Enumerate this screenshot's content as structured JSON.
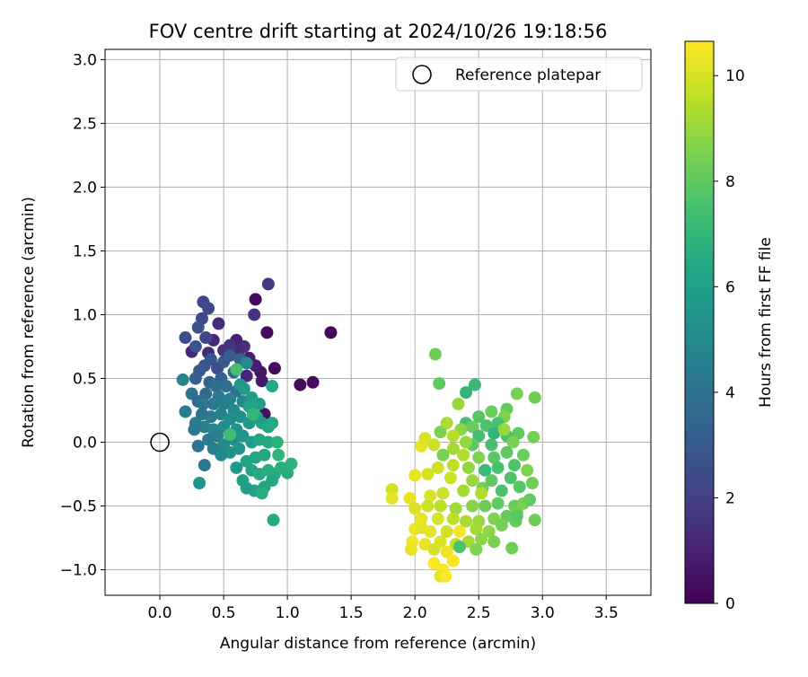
{
  "chart_data": {
    "type": "scatter",
    "title": "FOV centre drift starting at 2024/10/26 19:18:56",
    "xlabel": "Angular distance from reference (arcmin)",
    "ylabel": "Rotation from reference (arcmin)",
    "xlim": [
      -0.43,
      3.85
    ],
    "ylim": [
      -1.2,
      3.08
    ],
    "x_ticks": [
      0.0,
      0.5,
      1.0,
      1.5,
      2.0,
      2.5,
      3.0,
      3.5
    ],
    "x_tick_labels": [
      "0.0",
      "0.5",
      "1.0",
      "1.5",
      "2.0",
      "2.5",
      "3.0",
      "3.5"
    ],
    "y_ticks": [
      -1.0,
      -0.5,
      0.0,
      0.5,
      1.0,
      1.5,
      2.0,
      2.5,
      3.0
    ],
    "y_tick_labels": [
      "−1.0",
      "−0.5",
      "0.0",
      "0.5",
      "1.0",
      "1.5",
      "2.0",
      "2.5",
      "3.0"
    ],
    "grid": true,
    "legend": {
      "placement": "top-right",
      "entries": [
        {
          "label": "Reference platepar",
          "marker": "open-circle",
          "x": 0.0,
          "y": 0.0
        }
      ]
    },
    "colorbar": {
      "label": "Hours from first FF file",
      "colormap": "viridis",
      "range": [
        0,
        10.65
      ],
      "ticks": [
        0,
        2,
        4,
        6,
        8,
        10
      ],
      "tick_labels": [
        "0",
        "2",
        "4",
        "6",
        "8",
        "10"
      ]
    },
    "series": [
      {
        "color_by": "hours",
        "points": [
          [
            0.75,
            1.12,
            0.2
          ],
          [
            0.85,
            1.24,
            1.8
          ],
          [
            0.74,
            1.0,
            1.5
          ],
          [
            0.84,
            0.86,
            0.3
          ],
          [
            1.34,
            0.86,
            0.2
          ],
          [
            0.9,
            0.58,
            0.3
          ],
          [
            0.79,
            0.55,
            0.6
          ],
          [
            1.1,
            0.45,
            0.3
          ],
          [
            1.2,
            0.47,
            0.3
          ],
          [
            0.82,
            0.22,
            0.5
          ],
          [
            0.6,
            0.8,
            1.0
          ],
          [
            0.62,
            0.72,
            1.2
          ],
          [
            0.7,
            0.66,
            0.9
          ],
          [
            0.75,
            0.6,
            0.8
          ],
          [
            0.68,
            0.52,
            1.1
          ],
          [
            0.8,
            0.48,
            0.7
          ],
          [
            0.66,
            0.75,
            1.4
          ],
          [
            0.55,
            0.76,
            1.6
          ],
          [
            0.46,
            0.93,
            1.3
          ],
          [
            0.5,
            0.72,
            1.5
          ],
          [
            0.42,
            0.8,
            1.2
          ],
          [
            0.38,
            0.7,
            1.3
          ],
          [
            0.25,
            0.71,
            1.1
          ],
          [
            0.34,
            1.1,
            2.2
          ],
          [
            0.38,
            1.05,
            2.3
          ],
          [
            0.33,
            0.97,
            2.4
          ],
          [
            0.3,
            0.9,
            2.6
          ],
          [
            0.2,
            0.82,
            2.5
          ],
          [
            0.36,
            0.82,
            2.2
          ],
          [
            0.28,
            0.75,
            2.7
          ],
          [
            0.4,
            0.65,
            2.8
          ],
          [
            0.35,
            0.6,
            2.9
          ],
          [
            0.45,
            0.58,
            2.5
          ],
          [
            0.31,
            0.56,
            3.0
          ],
          [
            0.28,
            0.5,
            3.2
          ],
          [
            0.5,
            0.63,
            2.9
          ],
          [
            0.55,
            0.68,
            3.1
          ],
          [
            0.63,
            0.65,
            3.4
          ],
          [
            0.58,
            0.55,
            3.6
          ],
          [
            0.48,
            0.5,
            3.3
          ],
          [
            0.39,
            0.47,
            3.5
          ],
          [
            0.44,
            0.44,
            3.8
          ],
          [
            0.52,
            0.44,
            3.9
          ],
          [
            0.6,
            0.4,
            4.1
          ],
          [
            0.36,
            0.38,
            3.7
          ],
          [
            0.25,
            0.38,
            4.0
          ],
          [
            0.3,
            0.32,
            3.8
          ],
          [
            0.34,
            0.3,
            4.2
          ],
          [
            0.42,
            0.3,
            4.3
          ],
          [
            0.5,
            0.3,
            4.5
          ],
          [
            0.46,
            0.36,
            4.4
          ],
          [
            0.55,
            0.34,
            4.6
          ],
          [
            0.65,
            0.32,
            4.8
          ],
          [
            0.58,
            0.25,
            5.0
          ],
          [
            0.48,
            0.22,
            4.7
          ],
          [
            0.4,
            0.2,
            4.3
          ],
          [
            0.33,
            0.22,
            4.1
          ],
          [
            0.28,
            0.15,
            4.5
          ],
          [
            0.35,
            0.12,
            4.6
          ],
          [
            0.42,
            0.1,
            4.9
          ],
          [
            0.5,
            0.12,
            5.1
          ],
          [
            0.55,
            0.18,
            5.2
          ],
          [
            0.63,
            0.2,
            5.3
          ],
          [
            0.7,
            0.15,
            5.6
          ],
          [
            0.6,
            0.1,
            5.4
          ],
          [
            0.45,
            0.05,
            4.6
          ],
          [
            0.38,
            0.02,
            4.4
          ],
          [
            0.3,
            -0.03,
            4.0
          ],
          [
            0.42,
            -0.05,
            4.5
          ],
          [
            0.5,
            -0.02,
            5.0
          ],
          [
            0.58,
            0.02,
            5.3
          ],
          [
            0.65,
            0.05,
            5.6
          ],
          [
            0.72,
            0.0,
            5.8
          ],
          [
            0.62,
            -0.05,
            5.5
          ],
          [
            0.55,
            -0.08,
            5.4
          ],
          [
            0.48,
            -0.1,
            5.0
          ],
          [
            0.35,
            -0.18,
            4.2
          ],
          [
            0.31,
            -0.32,
            5.5
          ],
          [
            0.18,
            0.49,
            4.8
          ],
          [
            0.2,
            0.24,
            4.5
          ],
          [
            0.27,
            0.1,
            4.3
          ],
          [
            0.68,
            0.62,
            5.0
          ],
          [
            0.63,
            0.45,
            5.5
          ],
          [
            0.66,
            0.42,
            5.8
          ],
          [
            0.72,
            0.35,
            5.9
          ],
          [
            0.78,
            0.3,
            6.0
          ],
          [
            0.7,
            0.28,
            6.1
          ],
          [
            0.76,
            0.2,
            6.2
          ],
          [
            0.8,
            0.15,
            6.0
          ],
          [
            0.85,
            0.12,
            6.3
          ],
          [
            0.88,
            0.44,
            6.4
          ],
          [
            0.88,
            0.15,
            6.5
          ],
          [
            0.85,
            0.0,
            6.4
          ],
          [
            0.78,
            0.02,
            6.2
          ],
          [
            0.82,
            -0.1,
            6.4
          ],
          [
            0.75,
            -0.12,
            6.3
          ],
          [
            0.68,
            -0.15,
            6.1
          ],
          [
            0.72,
            -0.22,
            6.2
          ],
          [
            0.78,
            -0.25,
            6.5
          ],
          [
            0.85,
            -0.22,
            6.6
          ],
          [
            0.9,
            -0.25,
            6.5
          ],
          [
            0.95,
            -0.2,
            6.7
          ],
          [
            1.0,
            -0.24,
            6.6
          ],
          [
            1.03,
            -0.17,
            6.8
          ],
          [
            0.88,
            -0.3,
            6.4
          ],
          [
            0.82,
            -0.35,
            6.3
          ],
          [
            0.74,
            -0.38,
            6.0
          ],
          [
            0.68,
            -0.36,
            5.9
          ],
          [
            0.6,
            -0.2,
            5.7
          ],
          [
            0.65,
            -0.3,
            6.0
          ],
          [
            0.8,
            -0.4,
            6.6
          ],
          [
            0.89,
            -0.61,
            6.5
          ],
          [
            0.92,
            0.0,
            6.8
          ],
          [
            0.6,
            0.57,
            7.5
          ],
          [
            0.55,
            0.06,
            7.3
          ],
          [
            0.73,
            0.22,
            7.0
          ],
          [
            0.93,
            -0.1,
            6.9
          ],
          [
            2.16,
            0.69,
            8.3
          ],
          [
            2.19,
            0.46,
            8.0
          ],
          [
            2.4,
            0.39,
            7.0
          ],
          [
            2.47,
            0.45,
            7.1
          ],
          [
            2.34,
            0.3,
            9.0
          ],
          [
            2.8,
            0.38,
            8.4
          ],
          [
            2.94,
            0.35,
            8.3
          ],
          [
            2.6,
            0.24,
            8.2
          ],
          [
            2.72,
            0.26,
            8.1
          ],
          [
            2.7,
            0.2,
            8.6
          ],
          [
            2.5,
            0.2,
            7.8
          ],
          [
            2.4,
            0.15,
            7.5
          ],
          [
            2.36,
            0.1,
            8.8
          ],
          [
            2.45,
            0.12,
            8.2
          ],
          [
            2.56,
            0.13,
            7.6
          ],
          [
            2.65,
            0.15,
            7.5
          ],
          [
            2.2,
            0.08,
            8.5
          ],
          [
            2.3,
            0.05,
            9.5
          ],
          [
            2.5,
            0.05,
            7.5
          ],
          [
            2.62,
            0.07,
            6.9
          ],
          [
            2.72,
            0.05,
            7.6
          ],
          [
            2.81,
            0.07,
            8.0
          ],
          [
            2.93,
            0.04,
            8.4
          ],
          [
            2.77,
            0.0,
            8.5
          ],
          [
            2.6,
            -0.02,
            7.5
          ],
          [
            2.45,
            -0.02,
            8.0
          ],
          [
            2.3,
            -0.05,
            9.2
          ],
          [
            2.15,
            -0.02,
            9.8
          ],
          [
            2.08,
            0.03,
            10.0
          ],
          [
            2.05,
            -0.03,
            10.2
          ],
          [
            2.22,
            -0.1,
            8.5
          ],
          [
            2.38,
            -0.1,
            9.4
          ],
          [
            2.5,
            -0.12,
            8.6
          ],
          [
            2.62,
            -0.12,
            7.9
          ],
          [
            2.72,
            -0.08,
            8.0
          ],
          [
            2.85,
            -0.1,
            8.2
          ],
          [
            2.78,
            -0.18,
            7.7
          ],
          [
            2.65,
            -0.2,
            7.5
          ],
          [
            2.55,
            -0.22,
            7.2
          ],
          [
            2.42,
            -0.2,
            8.9
          ],
          [
            2.3,
            -0.18,
            9.6
          ],
          [
            2.18,
            -0.2,
            9.9
          ],
          [
            2.1,
            -0.25,
            10.0
          ],
          [
            2.0,
            -0.26,
            10.3
          ],
          [
            2.28,
            -0.28,
            9.8
          ],
          [
            2.45,
            -0.3,
            9.0
          ],
          [
            2.6,
            -0.3,
            8.0
          ],
          [
            2.75,
            -0.28,
            7.7
          ],
          [
            2.92,
            -0.32,
            8.3
          ],
          [
            2.82,
            -0.35,
            7.8
          ],
          [
            2.68,
            -0.38,
            7.6
          ],
          [
            2.53,
            -0.36,
            8.4
          ],
          [
            2.38,
            -0.38,
            9.2
          ],
          [
            2.22,
            -0.4,
            9.8
          ],
          [
            2.12,
            -0.42,
            10.1
          ],
          [
            1.96,
            -0.44,
            10.3
          ],
          [
            1.82,
            -0.37,
            9.9
          ],
          [
            1.82,
            -0.44,
            10.2
          ],
          [
            2.0,
            -0.52,
            10.1
          ],
          [
            2.1,
            -0.5,
            9.8
          ],
          [
            2.2,
            -0.5,
            9.5
          ],
          [
            2.32,
            -0.52,
            9.1
          ],
          [
            2.45,
            -0.5,
            8.7
          ],
          [
            2.55,
            -0.5,
            8.3
          ],
          [
            2.65,
            -0.48,
            8.0
          ],
          [
            2.78,
            -0.5,
            8.2
          ],
          [
            2.85,
            -0.48,
            8.5
          ],
          [
            2.8,
            -0.55,
            8.4
          ],
          [
            2.72,
            -0.58,
            8.1
          ],
          [
            2.62,
            -0.6,
            8.6
          ],
          [
            2.5,
            -0.62,
            9.0
          ],
          [
            2.4,
            -0.62,
            9.3
          ],
          [
            2.3,
            -0.6,
            9.6
          ],
          [
            2.18,
            -0.6,
            10.0
          ],
          [
            2.05,
            -0.6,
            10.3
          ],
          [
            2.0,
            -0.68,
            10.4
          ],
          [
            2.12,
            -0.7,
            10.2
          ],
          [
            2.25,
            -0.7,
            9.9
          ],
          [
            2.35,
            -0.7,
            10.5
          ],
          [
            2.48,
            -0.68,
            9.2
          ],
          [
            2.58,
            -0.7,
            8.8
          ],
          [
            2.68,
            -0.65,
            8.4
          ],
          [
            2.79,
            -0.62,
            8.2
          ],
          [
            2.94,
            -0.61,
            8.3
          ],
          [
            2.8,
            -0.58,
            7.9
          ],
          [
            1.98,
            -0.78,
            10.5
          ],
          [
            2.08,
            -0.8,
            10.3
          ],
          [
            2.2,
            -0.78,
            10.1
          ],
          [
            2.32,
            -0.8,
            9.6
          ],
          [
            2.42,
            -0.78,
            9.2
          ],
          [
            2.52,
            -0.76,
            8.8
          ],
          [
            2.62,
            -0.78,
            8.5
          ],
          [
            2.35,
            -0.82,
            7.6
          ],
          [
            2.48,
            -0.84,
            8.6
          ],
          [
            2.76,
            -0.83,
            8.3
          ],
          [
            1.97,
            -0.84,
            10.3
          ],
          [
            2.15,
            -0.84,
            10.0
          ],
          [
            2.25,
            -0.86,
            10.4
          ],
          [
            2.3,
            -0.93,
            10.5
          ],
          [
            2.15,
            -0.95,
            10.6
          ],
          [
            2.22,
            -1.0,
            10.6
          ],
          [
            2.2,
            -1.05,
            10.2
          ],
          [
            2.24,
            -1.05,
            10.6
          ],
          [
            2.05,
            -0.67,
            10.2
          ],
          [
            2.9,
            -0.45,
            8.1
          ],
          [
            2.88,
            -0.22,
            8.6
          ],
          [
            2.7,
            0.1,
            9.0
          ],
          [
            2.25,
            0.15,
            9.3
          ],
          [
            2.52,
            -0.4,
            9.4
          ],
          [
            2.4,
            0.0,
            8.9
          ]
        ]
      }
    ]
  }
}
